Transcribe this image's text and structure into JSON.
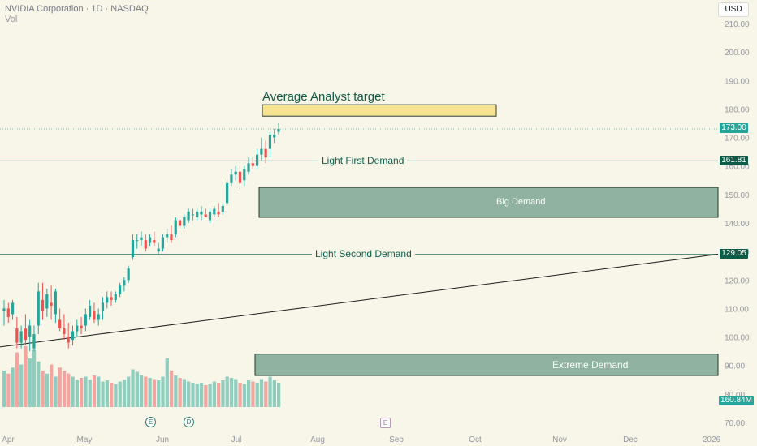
{
  "header": {
    "title": "NVIDIA Corporation · 1D · NASDAQ",
    "vol_label": "Vol"
  },
  "currency_button": "USD",
  "price_tags": {
    "last": "173.00",
    "light_first": "161.81",
    "light_second": "129.05",
    "volume": "160.84M"
  },
  "annotations": {
    "analyst_target": "Average Analyst target",
    "light_first": "Light First Demand",
    "light_second": "Light Second Demand",
    "big_demand": "Big Demand",
    "extreme_demand": "Extreme Demand"
  },
  "events": {
    "earnings_1": "E",
    "dividend": "D",
    "earnings_2": "E"
  },
  "colors": {
    "up": "#26a69a",
    "down": "#ef5350",
    "zone_fill": "#8fb3a0",
    "target_fill": "#f6e391",
    "line": "#5a8f86"
  },
  "chart_data": {
    "type": "candlestick",
    "title": "NVIDIA Corporation · 1D · NASDAQ",
    "y_ticks": [
      70,
      80,
      90,
      100,
      110,
      120,
      130,
      140,
      150,
      160,
      170,
      180,
      190,
      200,
      210
    ],
    "ylim": [
      67,
      213
    ],
    "x_ticks": [
      "Apr",
      "May",
      "Jun",
      "Jul",
      "Aug",
      "Sep",
      "Oct",
      "Nov",
      "Dec",
      "2026"
    ],
    "last_price": 173.0,
    "levels": {
      "light_first_demand": 161.81,
      "light_second_demand": 129.05
    },
    "zones": {
      "analyst_target": [
        177.5,
        181.5
      ],
      "big_demand": [
        142,
        152.5
      ],
      "extreme_demand": [
        86.5,
        94
      ]
    },
    "trendline": {
      "from_price": 96.5,
      "to_price": 129.05
    },
    "ohlc": [
      [
        109,
        113,
        104,
        110
      ],
      [
        110,
        112,
        105,
        107
      ],
      [
        108,
        113,
        106,
        112
      ],
      [
        103,
        107,
        96,
        98
      ],
      [
        98,
        104,
        96,
        102
      ],
      [
        103,
        108,
        97,
        99
      ],
      [
        100,
        106,
        95,
        104
      ],
      [
        96,
        104,
        95,
        101
      ],
      [
        104,
        119,
        101,
        116
      ],
      [
        113,
        119,
        106,
        109
      ],
      [
        110,
        117,
        107,
        115
      ],
      [
        112,
        118,
        106,
        111
      ],
      [
        108,
        117,
        105,
        116
      ],
      [
        106,
        110,
        102,
        103
      ],
      [
        103,
        108,
        99,
        101
      ],
      [
        100,
        105,
        96,
        98
      ],
      [
        99,
        104,
        97,
        102
      ],
      [
        102,
        106,
        100,
        104
      ],
      [
        104,
        107,
        101,
        103
      ],
      [
        104,
        110,
        102,
        108
      ],
      [
        107,
        113,
        106,
        111
      ],
      [
        109,
        112,
        105,
        106
      ],
      [
        106,
        110,
        104,
        108
      ],
      [
        109,
        114,
        106,
        112
      ],
      [
        112,
        116,
        110,
        114
      ],
      [
        114,
        116,
        111,
        113
      ],
      [
        113,
        116,
        112,
        115
      ],
      [
        115,
        119,
        114,
        118
      ],
      [
        118,
        121,
        116,
        120
      ],
      [
        120,
        125,
        119,
        124
      ],
      [
        128,
        136,
        127,
        134
      ],
      [
        134,
        136,
        131,
        134
      ],
      [
        134,
        137,
        132,
        135
      ],
      [
        134,
        136,
        130,
        131
      ],
      [
        133,
        136,
        132,
        135
      ],
      [
        134,
        137,
        132,
        133
      ],
      [
        130,
        133,
        129,
        131
      ],
      [
        131,
        136,
        130,
        135
      ],
      [
        135,
        138,
        133,
        136
      ],
      [
        136,
        139,
        133,
        134
      ],
      [
        136,
        142,
        135,
        141
      ],
      [
        141,
        143,
        138,
        139
      ],
      [
        139,
        143,
        138,
        142
      ],
      [
        141,
        145,
        140,
        144
      ],
      [
        143,
        145,
        141,
        143
      ],
      [
        142,
        145,
        141,
        144
      ],
      [
        143,
        146,
        141,
        144
      ],
      [
        143,
        145,
        142,
        142
      ],
      [
        141,
        145,
        140,
        144
      ],
      [
        143,
        146,
        142,
        145
      ],
      [
        144,
        147,
        142,
        143
      ],
      [
        144,
        147,
        143,
        146
      ],
      [
        147,
        155,
        146,
        154
      ],
      [
        154,
        159,
        153,
        157
      ],
      [
        157,
        160,
        155,
        158
      ],
      [
        158,
        160,
        152,
        154
      ],
      [
        155,
        160,
        153,
        159
      ],
      [
        158,
        163,
        157,
        161
      ],
      [
        161,
        163,
        159,
        160
      ],
      [
        160,
        166,
        159,
        164
      ],
      [
        164,
        170,
        162,
        166
      ],
      [
        166,
        169,
        161,
        163
      ],
      [
        166,
        172,
        163,
        171
      ],
      [
        170,
        173,
        168,
        171
      ],
      [
        172,
        175,
        171,
        173
      ]
    ],
    "volume_relative": [
      0.6,
      0.55,
      0.65,
      0.9,
      0.7,
      1.0,
      0.8,
      0.95,
      0.75,
      0.6,
      0.55,
      0.7,
      0.5,
      0.65,
      0.6,
      0.55,
      0.5,
      0.45,
      0.48,
      0.5,
      0.45,
      0.52,
      0.5,
      0.42,
      0.44,
      0.4,
      0.38,
      0.42,
      0.45,
      0.5,
      0.62,
      0.58,
      0.52,
      0.5,
      0.48,
      0.46,
      0.44,
      0.5,
      0.8,
      0.6,
      0.52,
      0.48,
      0.46,
      0.42,
      0.4,
      0.38,
      0.4,
      0.36,
      0.38,
      0.42,
      0.4,
      0.44,
      0.5,
      0.48,
      0.46,
      0.4,
      0.38,
      0.44,
      0.42,
      0.4,
      0.46,
      0.42,
      0.5,
      0.44,
      0.4
    ]
  }
}
